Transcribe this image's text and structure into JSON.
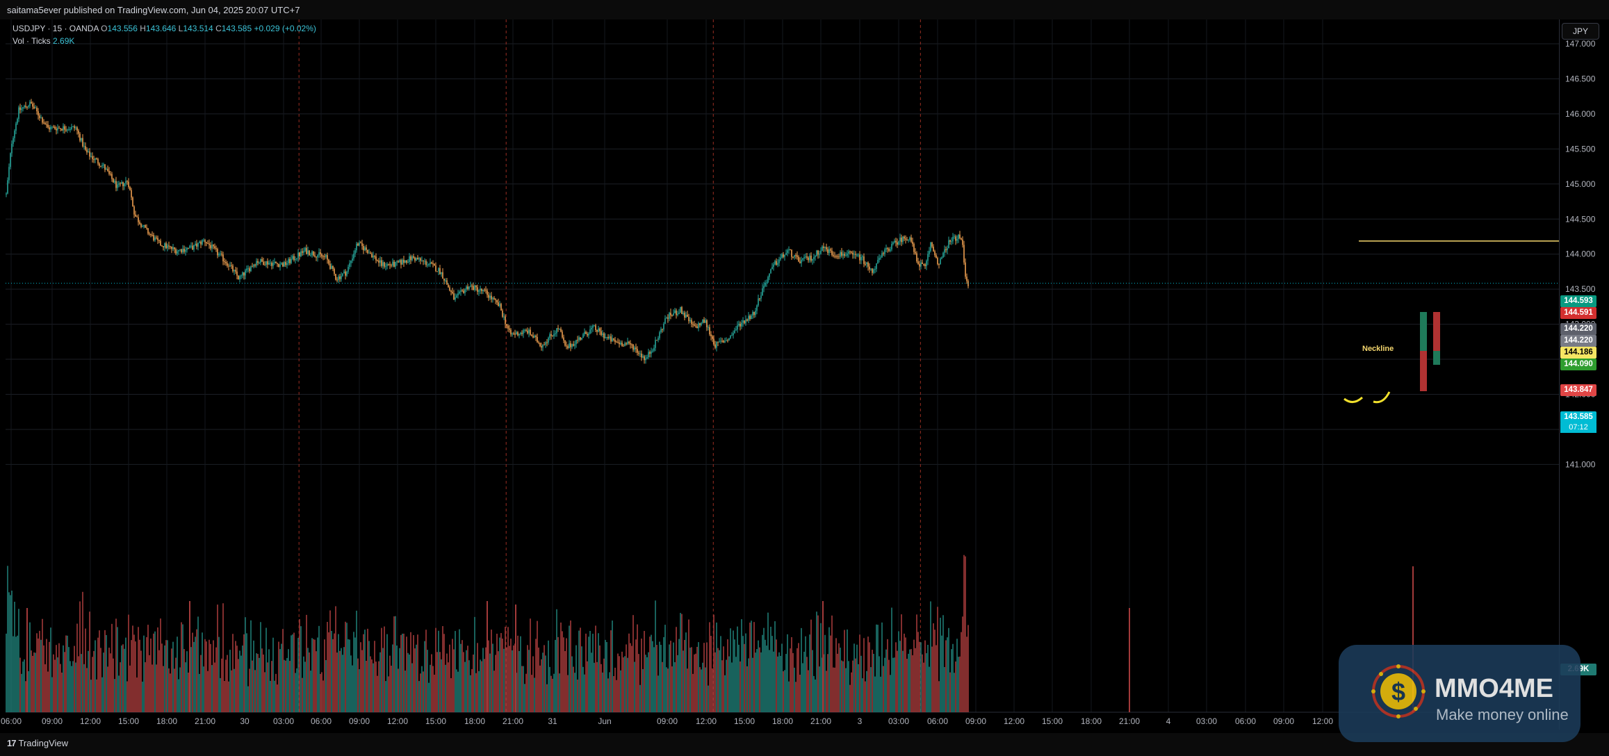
{
  "header": {
    "publisher": "saitama5ever published on TradingView.com, Jun 04, 2025 20:07 UTC+7"
  },
  "legend": {
    "symbol": "USDJPY · 15 · OANDA",
    "o_label": "O",
    "o_value": "143.556",
    "h_label": "H",
    "h_value": "143.646",
    "l_label": "L",
    "l_value": "143.514",
    "c_label": "C",
    "c_value": "143.585",
    "change": "+0.029 (+0.02%)",
    "vol_label": "Vol · Ticks",
    "vol_value": "2.69K"
  },
  "currency": "JPY",
  "annotation": "Neckline",
  "price_labels": {
    "ask": "144.593",
    "red": "144.591",
    "gray1": "144.220",
    "gray2": "144.220",
    "neckline": "144.186",
    "green": "144.090",
    "stop": "143.847",
    "last": "143.585",
    "countdown": "07:12",
    "vol_badge": "2.69K"
  },
  "footer": {
    "brand": "TradingView"
  },
  "watermark": {
    "title": "MMO4ME",
    "subtitle": "Make money online"
  },
  "colors": {
    "up": "#26a69a",
    "down": "#f0a050",
    "vol_up": "#1f7a72",
    "vol_down": "#a33a3a",
    "session_line": "#c0392b",
    "neckline": "#f5d76e"
  },
  "chart_data": {
    "type": "candlestick",
    "symbol": "USDJPY",
    "interval": "15",
    "ylim": [
      140.75,
      147.25
    ],
    "y_ticks": [
      "147.000",
      "146.500",
      "146.000",
      "145.500",
      "145.000",
      "144.500",
      "144.000",
      "143.500",
      "143.000",
      "142.500",
      "142.000",
      "141.500",
      "141.000"
    ],
    "x_ticks": [
      "06:00",
      "09:00",
      "12:00",
      "15:00",
      "18:00",
      "21:00",
      "30",
      "03:00",
      "06:00",
      "09:00",
      "12:00",
      "15:00",
      "18:00",
      "21:00",
      "31",
      "Jun",
      "09:00",
      "12:00",
      "15:00",
      "18:00",
      "21:00",
      "3",
      "03:00",
      "06:00",
      "09:00",
      "12:00",
      "15:00",
      "18:00",
      "21:00",
      "4",
      "03:00",
      "06:00",
      "09:00",
      "12:00"
    ],
    "price_path": [
      [
        0,
        144.85
      ],
      [
        8,
        145.6
      ],
      [
        18,
        146.05
      ],
      [
        35,
        146.15
      ],
      [
        60,
        145.8
      ],
      [
        100,
        145.8
      ],
      [
        115,
        145.45
      ],
      [
        140,
        145.25
      ],
      [
        160,
        144.95
      ],
      [
        175,
        145.05
      ],
      [
        185,
        144.55
      ],
      [
        200,
        144.35
      ],
      [
        220,
        144.15
      ],
      [
        245,
        144.05
      ],
      [
        270,
        144.1
      ],
      [
        285,
        144.2
      ],
      [
        300,
        144.05
      ],
      [
        320,
        143.85
      ],
      [
        335,
        143.65
      ],
      [
        360,
        143.9
      ],
      [
        400,
        143.85
      ],
      [
        430,
        144.05
      ],
      [
        460,
        143.95
      ],
      [
        475,
        143.65
      ],
      [
        490,
        143.75
      ],
      [
        505,
        144.15
      ],
      [
        520,
        144.05
      ],
      [
        540,
        143.85
      ],
      [
        560,
        143.85
      ],
      [
        585,
        143.95
      ],
      [
        610,
        143.85
      ],
      [
        625,
        143.75
      ],
      [
        645,
        143.35
      ],
      [
        665,
        143.55
      ],
      [
        690,
        143.45
      ],
      [
        710,
        143.25
      ],
      [
        725,
        142.85
      ],
      [
        750,
        142.9
      ],
      [
        770,
        142.7
      ],
      [
        795,
        142.95
      ],
      [
        805,
        142.65
      ],
      [
        825,
        142.8
      ],
      [
        845,
        142.95
      ],
      [
        865,
        142.8
      ],
      [
        875,
        142.75
      ],
      [
        900,
        142.7
      ],
      [
        920,
        142.5
      ],
      [
        935,
        142.75
      ],
      [
        950,
        143.1
      ],
      [
        970,
        143.2
      ],
      [
        990,
        142.95
      ],
      [
        1005,
        143.05
      ],
      [
        1020,
        142.7
      ],
      [
        1040,
        142.8
      ],
      [
        1055,
        143.0
      ],
      [
        1075,
        143.15
      ],
      [
        1090,
        143.55
      ],
      [
        1105,
        143.85
      ],
      [
        1125,
        144.05
      ],
      [
        1140,
        143.9
      ],
      [
        1160,
        143.95
      ],
      [
        1175,
        144.1
      ],
      [
        1190,
        144.0
      ],
      [
        1210,
        144.0
      ],
      [
        1230,
        143.95
      ],
      [
        1245,
        143.75
      ],
      [
        1265,
        144.05
      ],
      [
        1285,
        144.2
      ],
      [
        1300,
        144.25
      ],
      [
        1310,
        143.9
      ],
      [
        1322,
        143.8
      ],
      [
        1330,
        144.15
      ],
      [
        1342,
        143.85
      ],
      [
        1355,
        144.15
      ],
      [
        1368,
        144.25
      ],
      [
        1375,
        144.2
      ],
      [
        1380,
        143.7
      ],
      [
        1385,
        143.55
      ]
    ],
    "annotations": {
      "neckline_price": 144.186,
      "session_separators_bar_index": [
        280,
        580,
        880,
        1180
      ]
    }
  }
}
